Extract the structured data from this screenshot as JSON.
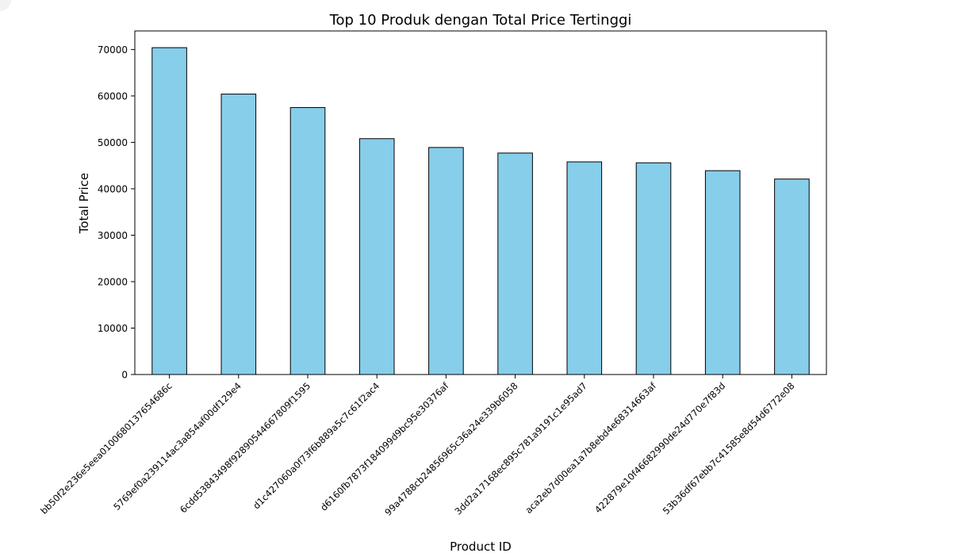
{
  "chart_data": {
    "type": "bar",
    "title": "Top 10 Produk dengan Total Price Tertinggi",
    "xlabel": "Product ID",
    "ylabel": "Total Price",
    "categories": [
      "bb50f2e236e5eea0100680137654686c",
      "5769ef0a239114ac3a854af00df129e4",
      "6cdd53843498f92890544667809f1595",
      "d1c427060a0f73f6b889a5c7c61f2ac4",
      "d6160fb7873f184099d9bc95e30376af",
      "99a4788cb24856965c36a24e339b6058",
      "3dd2a17168ec895c781a9191c1e95ad7",
      "aca2eb7d00ea1a7b8ebd4e68314663af",
      "422879e10f46682990de24d770e7f83d",
      "53b36df67ebb7c41585e8d54d6772e08"
    ],
    "values": [
      70400,
      60400,
      57500,
      50800,
      48900,
      47700,
      45800,
      45600,
      43900,
      42100
    ],
    "ylim": [
      0,
      74000
    ],
    "yticks": [
      0,
      10000,
      20000,
      30000,
      40000,
      50000,
      60000,
      70000
    ],
    "grid": false,
    "colors": {
      "bar_fill": "#87ceeb",
      "bar_edge": "#000000"
    }
  }
}
